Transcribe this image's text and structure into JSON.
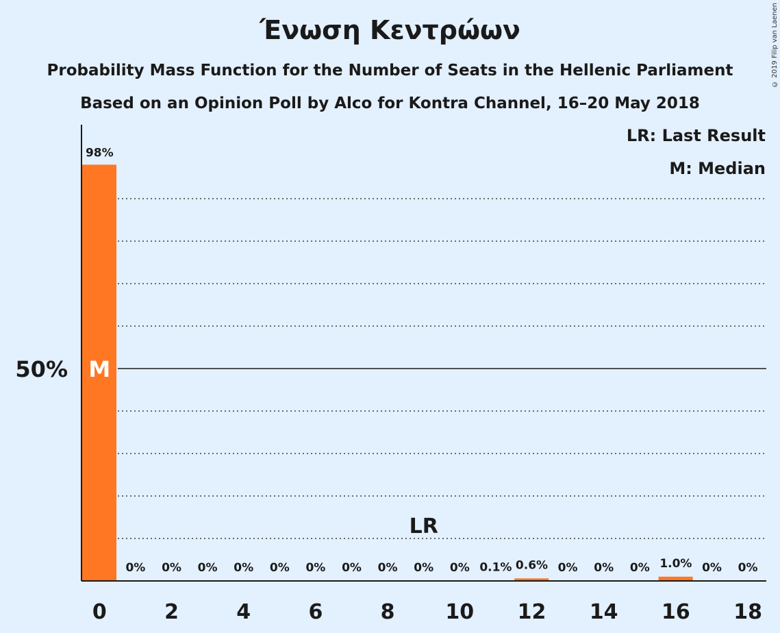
{
  "chart_data": {
    "type": "bar",
    "title": "Ένωση Κεντρώων",
    "subtitle": "Probability Mass Function for the Number of Seats in the Hellenic Parliament",
    "subtitle2": "Based on an Opinion Poll by Alco for Kontra Channel, 16–20 May 2018",
    "copyright": "© 2019 Filip van Laenen",
    "categories": [
      0,
      1,
      2,
      3,
      4,
      5,
      6,
      7,
      8,
      9,
      10,
      11,
      12,
      13,
      14,
      15,
      16,
      17,
      18
    ],
    "values": [
      98,
      0,
      0,
      0,
      0,
      0,
      0,
      0,
      0,
      0,
      0,
      0.1,
      0.6,
      0,
      0,
      0,
      1.0,
      0,
      0
    ],
    "value_labels": [
      "98%",
      "0%",
      "0%",
      "0%",
      "0%",
      "0%",
      "0%",
      "0%",
      "0%",
      "0%",
      "0%",
      "0.1%",
      "0.6%",
      "0%",
      "0%",
      "0%",
      "1.0%",
      "0%",
      "0%"
    ],
    "x_tick_labels": [
      "0",
      "2",
      "4",
      "6",
      "8",
      "10",
      "12",
      "14",
      "16",
      "18"
    ],
    "x_ticks": [
      0,
      2,
      4,
      6,
      8,
      10,
      12,
      14,
      16,
      18
    ],
    "y_tick_label": "50%",
    "y_tick_value": 50,
    "ylim": [
      0,
      100
    ],
    "gridlines": [
      10,
      20,
      30,
      40,
      60,
      70,
      80,
      90
    ],
    "grid": true,
    "bar_color": "#ff7722",
    "median_seat": 0,
    "median_marker": "M",
    "last_result_seat": 9,
    "last_result_marker": "LR",
    "legend": {
      "position": "top-right",
      "items": [
        "LR: Last Result",
        "M: Median"
      ]
    }
  }
}
